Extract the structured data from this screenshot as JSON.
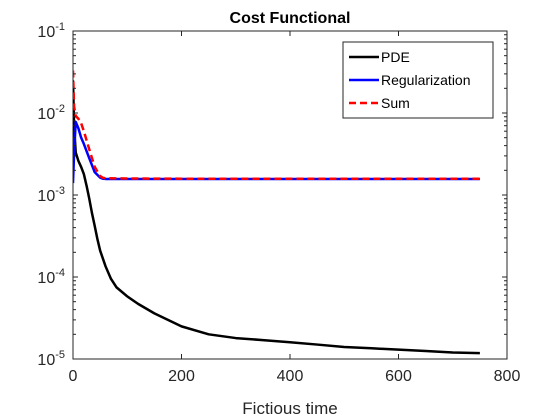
{
  "chart_data": {
    "type": "line",
    "title": "Cost Functional",
    "xlabel": "Fictious time",
    "ylabel": "",
    "xlim": [
      0,
      800
    ],
    "ylim": [
      1e-05,
      0.1
    ],
    "yscale": "log",
    "grid": false,
    "legend_position": "top-right",
    "x_ticks": [
      0,
      200,
      400,
      600,
      800
    ],
    "x_tick_labels": [
      "0",
      "200",
      "400",
      "600",
      "800"
    ],
    "y_ticks": [
      1e-05,
      0.0001,
      0.001,
      0.01,
      0.1
    ],
    "y_tick_labels": [
      {
        "base": "10",
        "exp": "-5"
      },
      {
        "base": "10",
        "exp": "-4"
      },
      {
        "base": "10",
        "exp": "-3"
      },
      {
        "base": "10",
        "exp": "-2"
      },
      {
        "base": "10",
        "exp": "-1"
      }
    ],
    "series": [
      {
        "name": "PDE",
        "color": "#000000",
        "dash": "solid",
        "x": [
          0,
          2,
          5,
          10,
          15,
          20,
          25,
          30,
          35,
          40,
          45,
          50,
          60,
          70,
          80,
          100,
          120,
          150,
          200,
          250,
          300,
          350,
          400,
          450,
          500,
          550,
          600,
          650,
          700,
          750
        ],
        "y": [
          0.025,
          0.007,
          0.0033,
          0.0026,
          0.0022,
          0.0018,
          0.0013,
          0.0009,
          0.0006,
          0.00042,
          0.00029,
          0.00021,
          0.000135,
          9.5e-05,
          7.5e-05,
          5.8e-05,
          4.7e-05,
          3.6e-05,
          2.5e-05,
          2e-05,
          1.8e-05,
          1.7e-05,
          1.6e-05,
          1.5e-05,
          1.4e-05,
          1.35e-05,
          1.3e-05,
          1.25e-05,
          1.2e-05,
          1.18e-05
        ]
      },
      {
        "name": "Regularization",
        "color": "#0000ff",
        "dash": "solid",
        "x": [
          0,
          2,
          5,
          10,
          15,
          20,
          30,
          40,
          50,
          55,
          60,
          100,
          200,
          300,
          400,
          500,
          600,
          700,
          750
        ],
        "y": [
          0.0014,
          0.0032,
          0.0078,
          0.0065,
          0.005,
          0.0042,
          0.0028,
          0.0019,
          0.00163,
          0.00158,
          0.00157,
          0.00157,
          0.00157,
          0.00157,
          0.00157,
          0.00157,
          0.00157,
          0.00157,
          0.00157
        ]
      },
      {
        "name": "Sum",
        "color": "#ff0000",
        "dash": "dashed",
        "x": [
          0,
          2,
          5,
          10,
          15,
          20,
          30,
          40,
          50,
          55,
          60,
          100,
          200,
          300,
          400,
          500,
          600,
          700,
          750
        ],
        "y": [
          0.033,
          0.012,
          0.0092,
          0.0085,
          0.0075,
          0.006,
          0.0036,
          0.0022,
          0.0017,
          0.00162,
          0.0016,
          0.00159,
          0.00158,
          0.00158,
          0.00158,
          0.00158,
          0.00158,
          0.00158,
          0.00158
        ]
      }
    ]
  }
}
